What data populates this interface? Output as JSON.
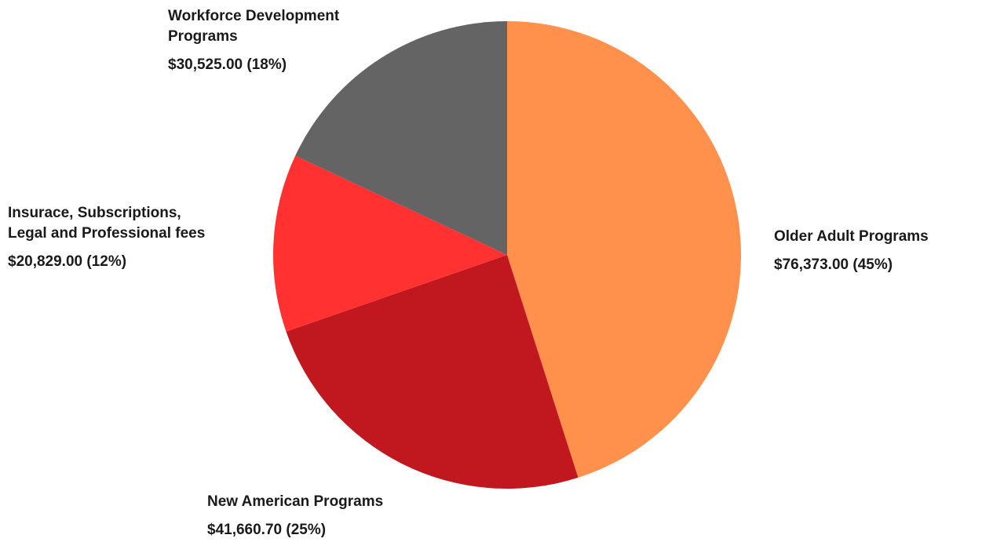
{
  "chart_data": {
    "type": "pie",
    "slices": [
      {
        "name": "Older Adult Programs",
        "value": 76373.0,
        "percent": 45,
        "value_label": "$76,373.00 (45%)",
        "color": "#FF914D"
      },
      {
        "name": "New American Programs",
        "value": 41660.7,
        "percent": 25,
        "value_label": "$41,660.70 (25%)",
        "color": "#C1171F"
      },
      {
        "name": "Insurace, Subscriptions,\nLegal and Professional fees",
        "value": 20829.0,
        "percent": 12,
        "value_label": "$20,829.00 (12%)",
        "color": "#FF3131"
      },
      {
        "name": "Workforce Development\nPrograms",
        "value": 30525.0,
        "percent": 18,
        "value_label": "$30,525.00 (18%)",
        "color": "#646464"
      }
    ],
    "start_angle": "top",
    "direction": "clockwise",
    "legend": "none"
  }
}
